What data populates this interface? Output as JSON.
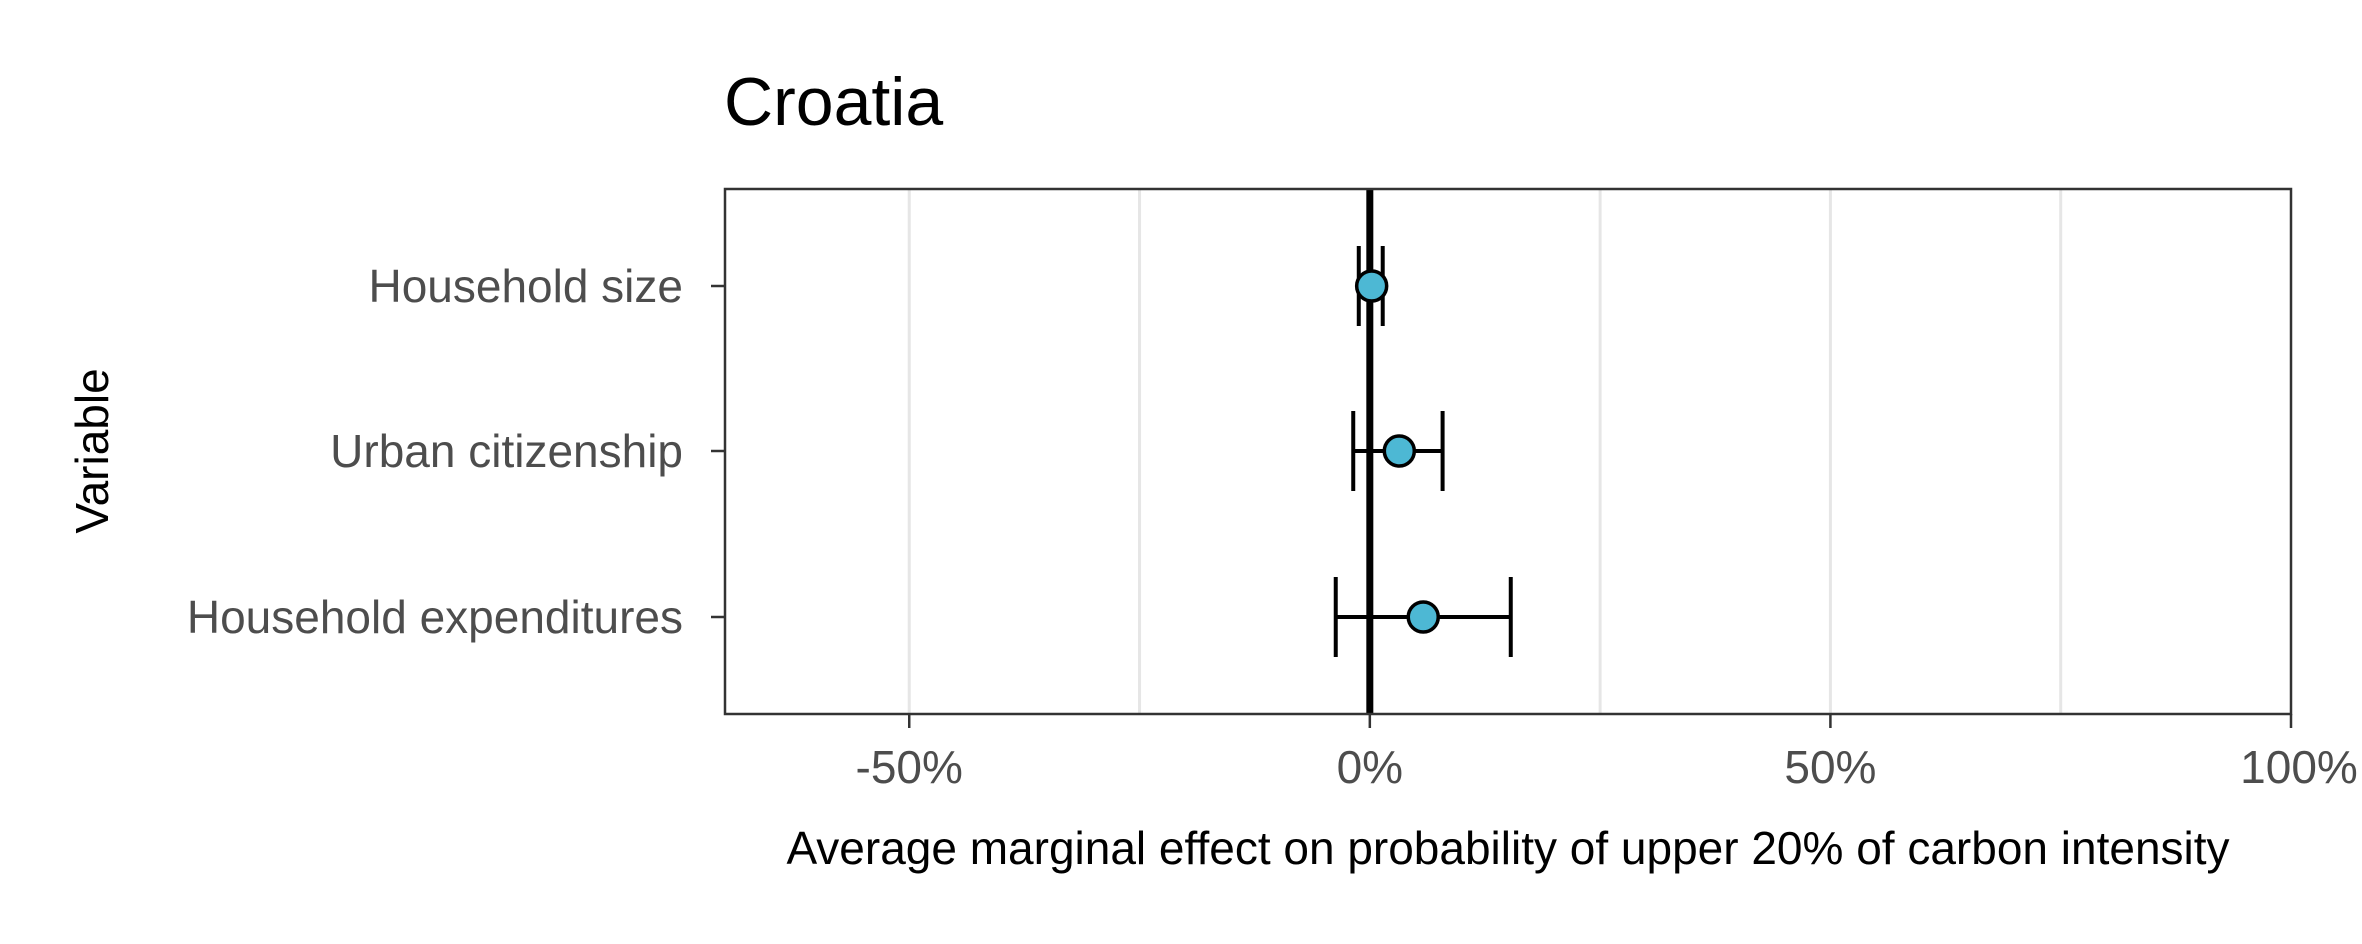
{
  "chart_data": {
    "type": "forest",
    "title": "Croatia",
    "xlabel": "Average marginal effect on probability of upper 20% of carbon intensity",
    "ylabel": "Variable",
    "xlim": [
      -70,
      100
    ],
    "xticks": [
      -50,
      0,
      50,
      100
    ],
    "xtick_labels": [
      "-50%",
      "0%",
      "50%",
      "100%"
    ],
    "minor_gridlines": [
      -25,
      25,
      75
    ],
    "reference_line": 0,
    "categories": [
      "Household size",
      "Urban citizenship",
      "Household expenditures"
    ],
    "estimates": [
      0.2,
      3.2,
      5.8
    ],
    "ci_lower": [
      -1.2,
      -1.8,
      -3.7
    ],
    "ci_upper": [
      1.4,
      7.9,
      15.3
    ],
    "grid": true,
    "legend": "none",
    "colors": {
      "point_fill": "#4db8d4",
      "point_stroke": "#000000",
      "gridline": "#e6e6e6",
      "panel_border": "#333333",
      "reference_line": "#000000"
    }
  }
}
